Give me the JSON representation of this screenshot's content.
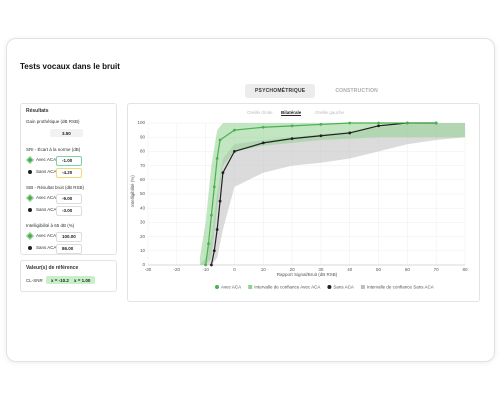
{
  "header": {
    "title": "Tests vocaux dans le bruit"
  },
  "tabs": [
    {
      "label": "PSYCHOMÉTRIQUE",
      "active": true
    },
    {
      "label": "CONSTRUCTION",
      "active": false
    }
  ],
  "results": {
    "title": "Résultats",
    "gain": {
      "label": "Gain prothétique (dB RSB)",
      "value": "3.50"
    },
    "metrics": [
      {
        "label": "SRI - Écart à la norme (dB)",
        "rows": [
          {
            "name": "Avec ACA",
            "value": "-1.00"
          },
          {
            "name": "Sans ACA",
            "value": "-4.20"
          }
        ]
      },
      {
        "label": "SIB - Résultat bruit (dB RSB)",
        "rows": [
          {
            "name": "Avec ACA",
            "value": "-9.00"
          },
          {
            "name": "Sans ACA",
            "value": "-3.00"
          }
        ]
      },
      {
        "label": "Intelligibilité à 65 dB (%)",
        "rows": [
          {
            "name": "Avec ACA",
            "value": "100.00"
          },
          {
            "name": "Sans ACA",
            "value": "86.00"
          }
        ]
      }
    ]
  },
  "reference": {
    "title": "Valeur(s) de référence",
    "label": "CL-SNR",
    "values": [
      "x = -10.20",
      "x = 1.00"
    ]
  },
  "ear_toggle": [
    {
      "label": "Oreille droite",
      "active": false
    },
    {
      "label": "Bilatérale",
      "active": true
    },
    {
      "label": "Oreille gauche",
      "active": false
    }
  ],
  "chart_data": {
    "type": "line",
    "x_label": "Rapport Signal/Bruit (dB RSB)",
    "y_label": "Intelligibilité (%)",
    "xlim": [
      -30,
      80
    ],
    "xticks": [
      -30,
      -20,
      -10,
      0,
      10,
      20,
      30,
      40,
      50,
      60,
      70,
      80
    ],
    "ylim": [
      0,
      100
    ],
    "yticks": [
      0,
      10,
      20,
      30,
      40,
      50,
      60,
      70,
      80,
      90,
      100
    ],
    "grid": true,
    "legend": "bottom",
    "series": [
      {
        "name": "Avec ACA",
        "kind": "line",
        "color": "#4caf50",
        "x": [
          -10,
          -9,
          -8,
          -7,
          -6,
          -5,
          0,
          10,
          20,
          30,
          40,
          50,
          60,
          70
        ],
        "values": [
          0,
          15,
          35,
          55,
          75,
          88,
          95,
          97,
          98,
          99,
          100,
          100,
          100,
          100
        ]
      },
      {
        "name": "Intervalle de confiance Avec ACA",
        "kind": "band",
        "color": "#8fd18f",
        "x": [
          -12,
          -10,
          -8,
          -6,
          -4,
          0,
          10,
          20,
          30,
          40,
          50,
          60,
          70,
          80
        ],
        "lower": [
          0,
          0,
          5,
          40,
          70,
          80,
          84,
          86,
          88,
          89,
          90,
          90,
          90,
          90
        ],
        "upper": [
          5,
          30,
          70,
          95,
          100,
          100,
          100,
          100,
          100,
          100,
          100,
          100,
          100,
          100
        ]
      },
      {
        "name": "Sans ACA",
        "kind": "line",
        "color": "#222222",
        "x": [
          -8,
          -7,
          -6,
          -5,
          -4,
          0,
          10,
          20,
          30,
          40,
          50,
          60,
          70
        ],
        "values": [
          0,
          10,
          25,
          45,
          65,
          80,
          86,
          89,
          91,
          93,
          98,
          100,
          100
        ]
      },
      {
        "name": "Intervalle de confiance Sans ACA",
        "kind": "band",
        "color": "#bdbdbd",
        "x": [
          -12,
          -10,
          -8,
          -6,
          -4,
          0,
          10,
          20,
          30,
          40,
          50,
          60,
          70,
          80
        ],
        "lower": [
          0,
          0,
          0,
          5,
          25,
          55,
          65,
          70,
          72,
          75,
          80,
          85,
          88,
          90
        ],
        "upper": [
          0,
          5,
          20,
          50,
          75,
          85,
          88,
          90,
          92,
          94,
          97,
          99,
          100,
          100
        ]
      }
    ]
  }
}
